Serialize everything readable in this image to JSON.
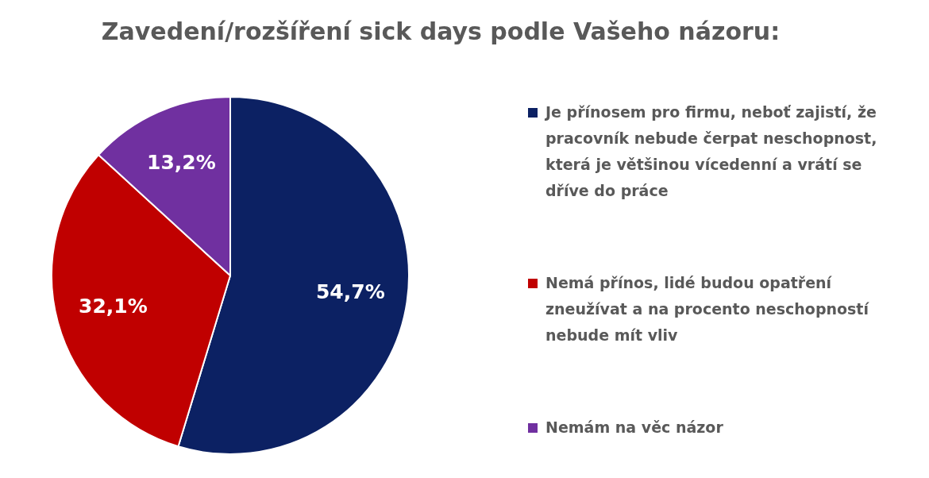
{
  "chart_data": {
    "type": "pie",
    "title": "Zavedení/rozšíření sick days podle Vašeho názoru:",
    "categories": [
      "Je přínosem pro firmu, neboť zajistí, že pracovník nebude čerpat neschopnost, která je většinou vícedenní a vrátí se dříve do práce",
      "Nemá přínos, lidé budou opatření zneužívat a na procento neschopností nebude mít vliv",
      "Nemám na věc názor"
    ],
    "values": [
      54.7,
      32.1,
      13.2
    ],
    "colors": [
      "#0c2163",
      "#c00000",
      "#7030a0"
    ],
    "value_labels": [
      "54,7%",
      "32,1%",
      "13,2%"
    ],
    "legend": "right"
  }
}
